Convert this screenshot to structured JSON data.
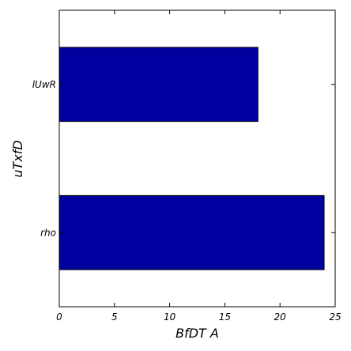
{
  "chart_data": {
    "type": "bar",
    "orientation": "horizontal",
    "categories": [
      "rho",
      "lUwR"
    ],
    "values": [
      24,
      18
    ],
    "xlabel": "BfDT  A",
    "ylabel": "uTxfD",
    "xlim": [
      0,
      25
    ],
    "xticks": [
      0,
      5,
      10,
      15,
      20,
      25
    ],
    "grid": false,
    "bar_color": "#0000a0",
    "bar_edge_color": "#000000"
  }
}
